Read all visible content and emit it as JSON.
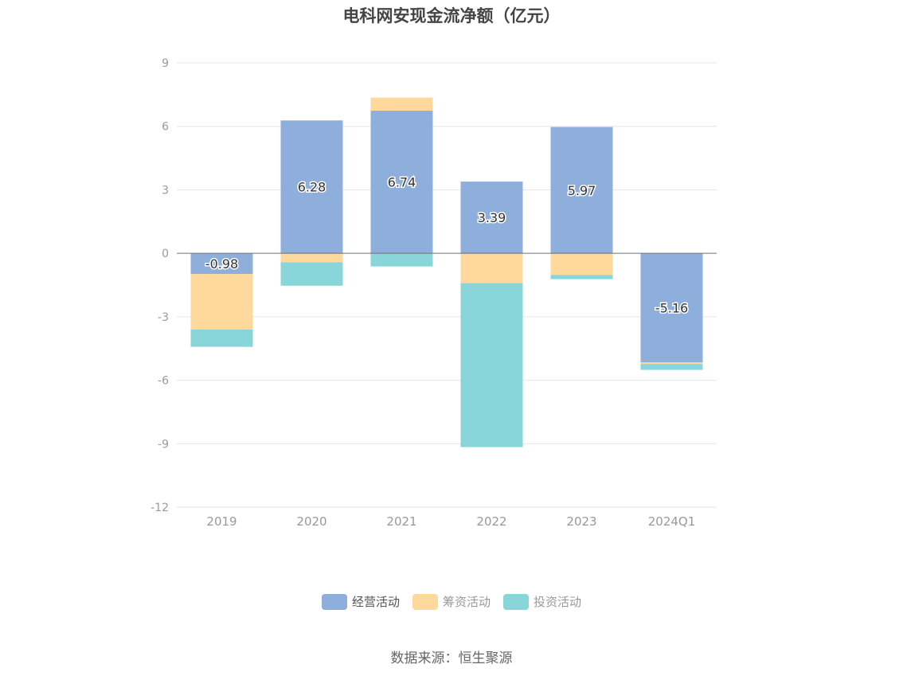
{
  "title": "电科网安现金流净额（亿元）",
  "source": "数据来源：恒生聚源",
  "chart_data": {
    "type": "bar",
    "stacked": true,
    "categories": [
      "2019",
      "2020",
      "2021",
      "2022",
      "2023",
      "2024Q1"
    ],
    "ylim": [
      -12,
      9
    ],
    "yticks": [
      9,
      6,
      3,
      0,
      -3,
      -6,
      -9,
      -12
    ],
    "grid": true,
    "legend_position": "bottom",
    "series": [
      {
        "name": "经营活动",
        "color": "#8eaedb",
        "text_color": "#555555",
        "values": [
          -0.98,
          6.28,
          6.74,
          3.39,
          5.97,
          -5.16
        ],
        "labels": [
          "-0.98",
          "6.28",
          "6.74",
          "3.39",
          "5.97",
          "-5.16"
        ]
      },
      {
        "name": "筹资活动",
        "color": "#ffd99b",
        "text_color": "#999999",
        "values": [
          -2.62,
          -0.42,
          0.62,
          -1.41,
          -1.02,
          -0.07
        ]
      },
      {
        "name": "投资活动",
        "color": "#88d6d9",
        "text_color": "#999999",
        "values": [
          -0.82,
          -1.11,
          -0.62,
          -7.75,
          -0.2,
          -0.28
        ]
      }
    ]
  }
}
